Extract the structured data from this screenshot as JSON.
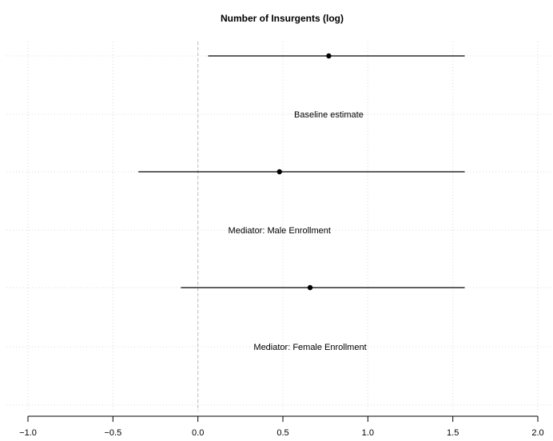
{
  "chart_data": {
    "type": "scatter",
    "title": "Number of Insurgents (log)",
    "xlabel": "",
    "ylabel": "",
    "xlim": [
      -1.0,
      2.0
    ],
    "x_ticks": [
      -1.0,
      -0.5,
      0.0,
      0.5,
      1.0,
      1.5,
      2.0
    ],
    "x_tick_labels": [
      "−1.0",
      "−0.5",
      "0.0",
      "0.5",
      "1.0",
      "1.5",
      "2.0"
    ],
    "reference_line_x": 0,
    "grid": true,
    "models": [
      {
        "label": "Baseline estimate",
        "estimate": 0.77,
        "ci_low": 0.06,
        "ci_high": 1.57
      },
      {
        "label": "Mediator: Male Enrollment",
        "estimate": 0.48,
        "ci_low": -0.35,
        "ci_high": 1.57
      },
      {
        "label": "Mediator: Female Enrollment",
        "estimate": 0.66,
        "ci_low": -0.1,
        "ci_high": 1.57
      }
    ]
  }
}
